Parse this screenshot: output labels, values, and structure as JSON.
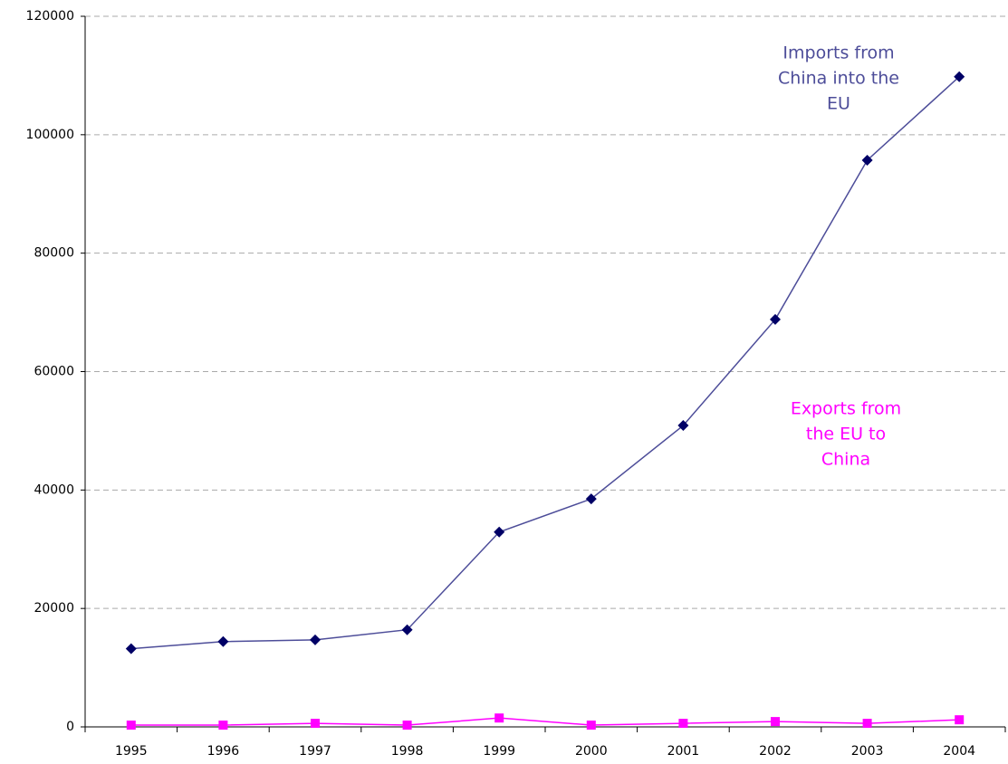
{
  "chart_data": {
    "type": "line",
    "categories": [
      "1995",
      "1996",
      "1997",
      "1998",
      "1999",
      "2000",
      "2001",
      "2002",
      "2003",
      "2004"
    ],
    "series": [
      {
        "color": "#000066",
        "line_color": "#4d4d99",
        "marker": "diamond",
        "values": [
          13200,
          14400,
          14700,
          16400,
          32900,
          38500,
          50900,
          68800,
          95700,
          109800
        ]
      },
      {
        "color": "#ff00ff",
        "line_color": "#ff00ff",
        "marker": "square",
        "values": [
          300,
          300,
          600,
          300,
          1500,
          300,
          600,
          900,
          600,
          1200
        ]
      }
    ],
    "annotations": [
      {
        "lines": [
          "Imports from",
          "China into the",
          "EU"
        ]
      },
      {
        "lines": [
          "Exports from",
          "the EU to",
          "China"
        ]
      }
    ],
    "ylim": [
      0,
      120000
    ],
    "yticks": [
      0,
      20000,
      40000,
      60000,
      80000,
      100000,
      120000
    ],
    "grid": true
  }
}
